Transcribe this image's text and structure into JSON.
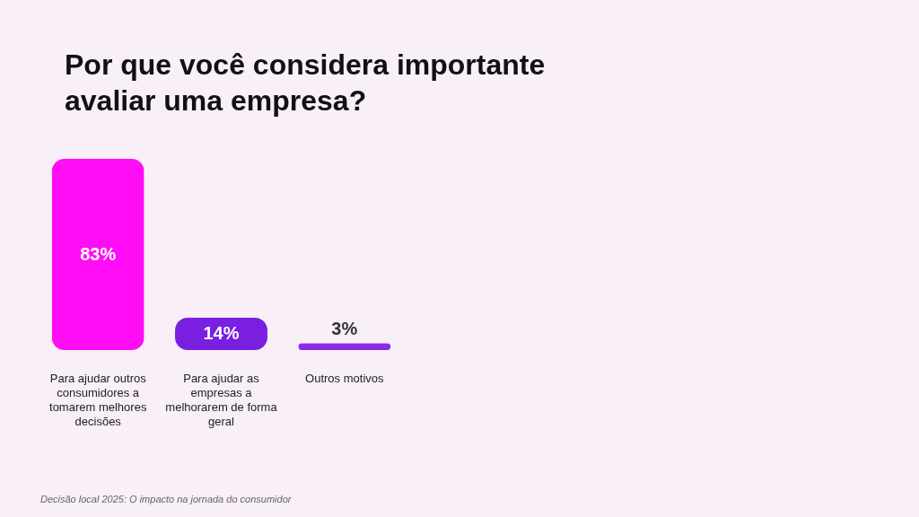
{
  "chart_data": {
    "type": "bar",
    "title": "Por que você considera importante avaliar uma empresa?",
    "categories": [
      "Para ajudar outros consumidores a tomarem melhores decisões",
      "Para ajudar as empresas a melhorarem de forma geral",
      "Outros motivos"
    ],
    "values": [
      83,
      14,
      3
    ],
    "value_labels": [
      "83%",
      "14%",
      "3%"
    ],
    "colors": [
      "#ff0df5",
      "#7a1fe0",
      "#8a2be8"
    ],
    "annotations": [
      "Decisão local 2025: O impacto na jornada do consumidor"
    ]
  }
}
